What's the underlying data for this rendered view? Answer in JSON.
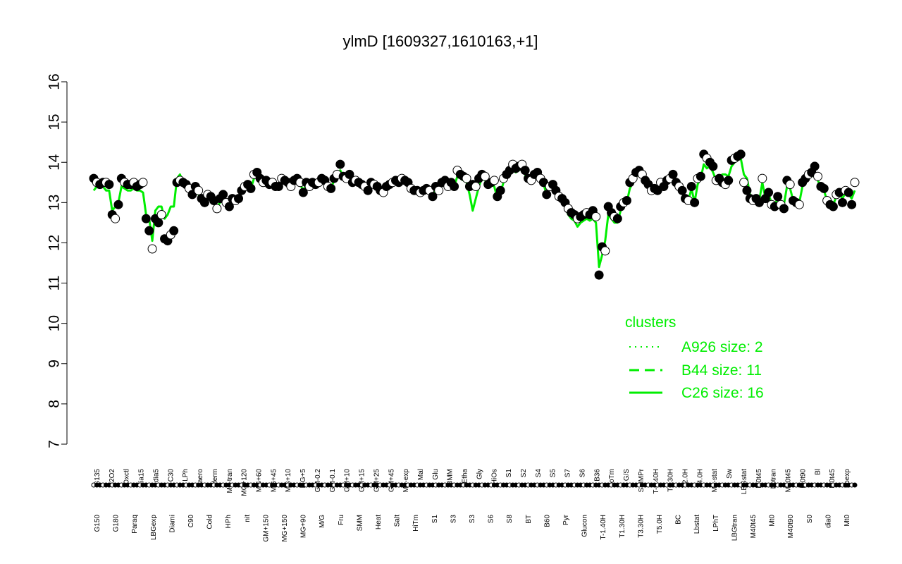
{
  "chart_data": {
    "type": "line",
    "title": "ylmD [1609327,1610163,+1]",
    "xlabel": "",
    "ylabel": "",
    "ylim": [
      7,
      16
    ],
    "yticks": [
      7,
      8,
      9,
      10,
      11,
      12,
      13,
      14,
      15,
      16
    ],
    "grid": false,
    "upper_tick_labels": [
      "G135",
      "H2O2",
      "Oxctl",
      "dia15",
      "dia5",
      "C30",
      "LPh",
      "aero",
      "ferm",
      "M9-tran",
      "MG+120",
      "MG+60",
      "MG+45",
      "MG+10",
      "MG+5",
      "GM-0.2",
      "GM-0.1",
      "GM+10",
      "GM+15",
      "GM+25",
      "GM+45",
      "M9-exp",
      "Mal",
      "Glu",
      "BMM",
      "Etha",
      "Gly",
      "HiOs",
      "S1",
      "S2",
      "S4",
      "S5",
      "S7",
      "S6",
      "B36",
      "LoTm",
      "G/S",
      "SMMPr",
      "T-0.40H",
      "T0.30H",
      "T2.0H",
      "T4.0H",
      "M9-stat",
      "Sw",
      "LBGstat",
      "M0t45",
      "Lbtran",
      "M40t45",
      "M0t90",
      "Bl",
      "M0t45",
      "Lbexp"
    ],
    "lower_tick_labels": [
      "G150",
      "G180",
      "Paraq",
      "LBGexp",
      "Diami",
      "C90",
      "Cold",
      "HPh",
      "nit",
      "GM+150",
      "MG+150",
      "MG+90",
      "M/G",
      "Fru",
      "SMM",
      "Heat",
      "Salt",
      "HiTm",
      "S1",
      "S3",
      "S3",
      "S6",
      "S8",
      "BT",
      "B60",
      "Pyr",
      "Glucon",
      "T-1.40H",
      "T1.30H",
      "T3.30H",
      "T5.0H",
      "BC",
      "Lbstat",
      "LPhT",
      "LBGtran",
      "M40t45",
      "Mt0",
      "M40t90",
      "S0",
      "dia0",
      "Mt0"
    ],
    "series": [
      {
        "type": "points",
        "values": [
          13.6,
          13.5,
          13.45,
          13.5,
          13.5,
          13.45,
          12.7,
          12.6,
          12.95,
          13.6,
          13.5,
          13.45,
          13.45,
          13.5,
          13.4,
          13.45,
          13.5,
          12.6,
          12.3,
          11.85,
          12.6,
          12.5,
          12.7,
          12.1,
          12.05,
          12.2,
          12.3,
          13.5,
          13.55,
          13.5,
          13.45,
          13.35,
          13.2,
          13.4,
          13.3,
          13.1,
          13.0,
          13.2,
          13.15,
          13.05,
          12.85,
          13.1,
          13.2,
          13.0,
          12.9,
          13.1,
          13.05,
          13.1,
          13.3,
          13.4,
          13.45,
          13.35,
          13.7,
          13.75,
          13.6,
          13.5,
          13.55,
          13.45,
          13.5,
          13.4,
          13.4,
          13.6,
          13.55,
          13.5,
          13.4,
          13.55,
          13.6,
          13.5,
          13.25,
          13.5,
          13.4,
          13.5,
          13.45,
          13.5,
          13.6,
          13.55,
          13.4,
          13.35,
          13.6,
          13.7,
          13.95,
          13.65,
          13.6,
          13.7,
          13.5,
          13.55,
          13.5,
          13.45,
          13.4,
          13.3,
          13.5,
          13.45,
          13.4,
          13.3,
          13.25,
          13.4,
          13.45,
          13.5,
          13.55,
          13.5,
          13.6,
          13.55,
          13.5,
          13.35,
          13.3,
          13.3,
          13.25,
          13.3,
          13.35,
          13.3,
          13.15,
          13.4,
          13.3,
          13.5,
          13.55,
          13.4,
          13.5,
          13.4,
          13.8,
          13.7,
          13.65,
          13.6,
          13.4,
          13.45,
          13.4,
          13.6,
          13.7,
          13.65,
          13.45,
          13.5,
          13.55,
          13.15,
          13.3,
          13.6,
          13.7,
          13.8,
          13.95,
          13.85,
          13.9,
          13.95,
          13.8,
          13.6,
          13.55,
          13.7,
          13.75,
          13.6,
          13.5,
          13.2,
          13.4,
          13.45,
          13.3,
          13.15,
          13.1,
          13.0,
          12.85,
          12.75,
          12.7,
          12.6,
          12.65,
          12.7,
          12.75,
          12.7,
          12.8,
          12.65,
          11.2,
          11.9,
          11.8,
          12.9,
          12.75,
          12.65,
          12.6,
          12.9,
          13.0,
          13.05,
          13.5,
          13.6,
          13.75,
          13.8,
          13.7,
          13.55,
          13.45,
          13.3,
          13.35,
          13.3,
          13.5,
          13.4,
          13.55,
          13.6,
          13.7,
          13.5,
          13.4,
          13.3,
          13.1,
          13.05,
          13.4,
          13.0,
          13.6,
          13.65,
          14.2,
          14.1,
          14.0,
          13.9,
          13.55,
          13.6,
          13.5,
          13.45,
          13.55,
          14.05,
          14.1,
          14.15,
          14.2,
          13.5,
          13.3,
          13.1,
          13.05,
          13.1,
          13.0,
          13.6,
          13.1,
          13.25,
          12.95,
          12.9,
          13.15,
          12.95,
          12.85,
          13.55,
          13.45,
          13.05,
          13.0,
          12.95,
          13.5,
          13.6,
          13.7,
          13.75,
          13.9,
          13.65,
          13.4,
          13.35,
          13.05,
          12.95,
          12.9,
          13.2,
          13.25,
          13.0,
          13.3,
          13.25,
          12.95,
          13.5
        ]
      },
      {
        "name": "C26",
        "type": "line",
        "values": [
          13.3,
          13.4,
          13.5,
          13.4,
          13.3,
          13.3,
          12.8,
          12.9,
          13.0,
          13.4,
          13.35,
          13.3,
          13.3,
          13.35,
          13.3,
          13.3,
          13.25,
          12.7,
          12.6,
          12.05,
          12.8,
          12.9,
          12.9,
          12.6,
          12.7,
          12.9,
          12.9,
          13.6,
          13.7,
          13.5,
          13.45,
          13.3,
          13.2,
          13.3,
          13.2,
          13.1,
          13.0,
          13.1,
          13.1,
          13.0,
          12.9,
          13.0,
          13.1,
          13.05,
          13.0,
          13.1,
          13.1,
          13.1,
          13.3,
          13.35,
          13.4,
          13.35,
          13.6,
          13.65,
          13.6,
          13.5,
          13.5,
          13.45,
          13.45,
          13.4,
          13.4,
          13.5,
          13.5,
          13.45,
          13.4,
          13.5,
          13.5,
          13.45,
          13.3,
          13.45,
          13.35,
          13.4,
          13.4,
          13.45,
          13.5,
          13.5,
          13.4,
          13.35,
          13.55,
          13.6,
          13.8,
          13.65,
          13.55,
          13.6,
          13.5,
          13.5,
          13.45,
          13.4,
          13.4,
          13.3,
          13.4,
          13.4,
          13.35,
          13.3,
          13.2,
          13.35,
          13.4,
          13.45,
          13.5,
          13.45,
          13.5,
          13.5,
          13.45,
          13.35,
          13.3,
          13.3,
          13.25,
          13.3,
          13.3,
          13.3,
          13.2,
          13.35,
          13.3,
          13.45,
          13.5,
          13.4,
          13.45,
          13.4,
          13.65,
          13.6,
          13.55,
          13.5,
          13.2,
          12.8,
          13.1,
          13.4,
          13.6,
          13.55,
          13.4,
          13.45,
          13.4,
          13.1,
          13.25,
          13.5,
          13.6,
          13.7,
          13.8,
          13.75,
          13.8,
          13.85,
          13.7,
          13.55,
          13.5,
          13.6,
          13.65,
          13.55,
          13.45,
          13.2,
          13.35,
          13.35,
          13.25,
          13.1,
          13.0,
          12.9,
          12.7,
          12.6,
          12.55,
          12.4,
          12.5,
          12.55,
          12.6,
          12.55,
          12.6,
          12.5,
          11.4,
          11.7,
          12.05,
          12.7,
          12.6,
          12.5,
          12.5,
          12.8,
          12.9,
          13.0,
          13.35,
          13.5,
          13.65,
          13.7,
          13.6,
          13.5,
          13.4,
          13.3,
          13.3,
          13.3,
          13.45,
          13.4,
          13.5,
          13.55,
          13.6,
          13.45,
          13.35,
          13.25,
          13.1,
          13.05,
          13.35,
          13.0,
          13.45,
          13.6,
          13.95,
          13.85,
          13.9,
          13.75,
          13.55,
          13.6,
          13.7,
          13.7,
          13.65,
          13.9,
          14.0,
          14.05,
          14.1,
          13.7,
          13.6,
          13.2,
          13.1,
          13.1,
          13.05,
          13.5,
          13.1,
          13.2,
          13.0,
          12.95,
          13.1,
          13.0,
          12.95,
          13.4,
          13.35,
          13.05,
          13.0,
          13.0,
          13.4,
          13.55,
          13.6,
          13.65,
          13.75,
          13.55,
          13.4,
          13.3,
          13.05,
          13.0,
          12.95,
          13.15,
          13.2,
          13.1,
          13.25,
          13.2,
          13.1,
          13.3
        ]
      }
    ],
    "legend": {
      "title": "clusters",
      "position": "right",
      "entries": [
        {
          "label": "A926 size: 2",
          "style": "dotted"
        },
        {
          "label": "B44 size: 11",
          "style": "dashed"
        },
        {
          "label": "C26 size: 16",
          "style": "solid"
        }
      ]
    },
    "colors": {
      "line": "#00ee00",
      "points_fill": "#000000",
      "points_open": "#ffffff",
      "axis": "#000000"
    }
  }
}
